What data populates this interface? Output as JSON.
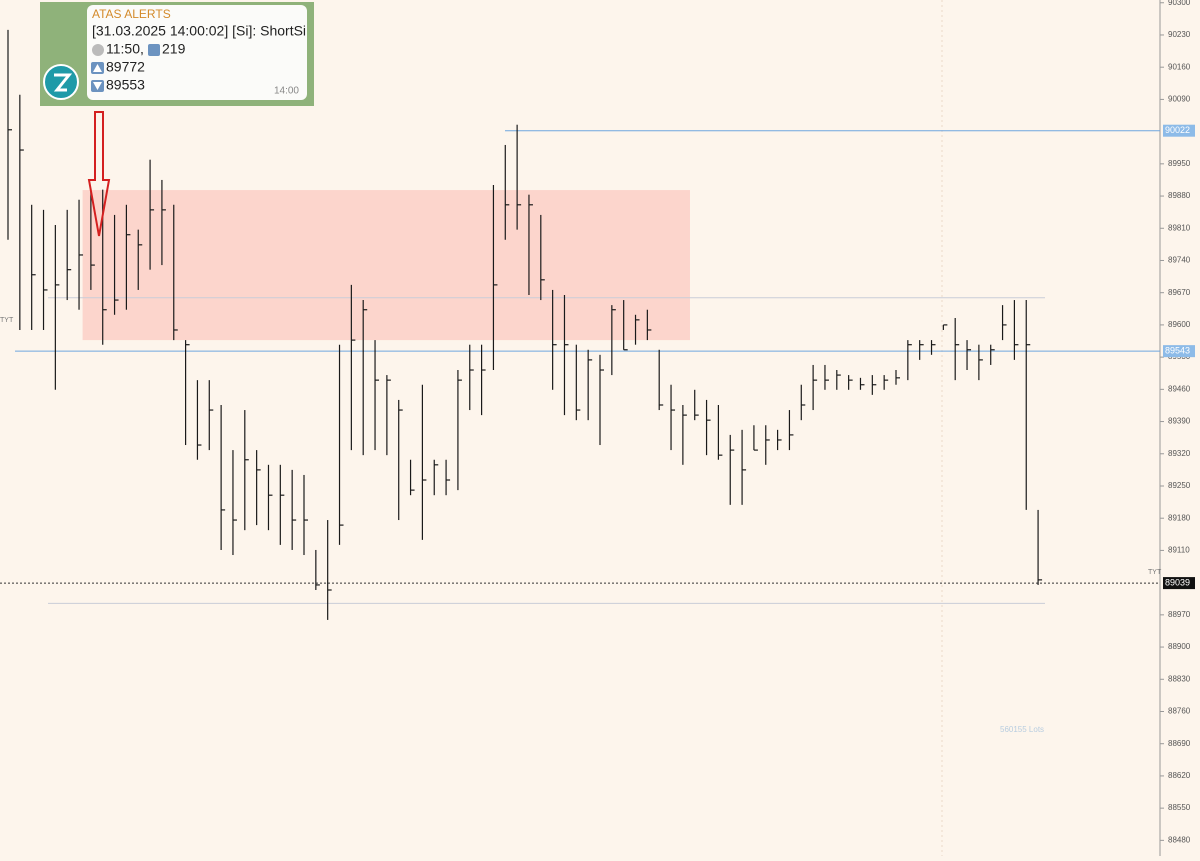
{
  "chart_data": {
    "type": "ohlc",
    "color": "#1a1a1a",
    "high": [
      90241,
      90100,
      89861,
      89850,
      89817,
      89850,
      89872,
      89894,
      89894,
      89839,
      89861,
      89807,
      89959,
      89915,
      89861,
      89567,
      89480,
      89480,
      89426,
      89328,
      89415,
      89328,
      89296,
      89296,
      89285,
      89274,
      89111,
      89176,
      89557,
      89687,
      89654,
      89567,
      89491,
      89437,
      89307,
      89470,
      89307,
      89307,
      89502,
      89557,
      89557,
      89904,
      89991,
      90035,
      89883,
      89839,
      89676,
      89665,
      89557,
      89546,
      89535,
      89643,
      89654,
      89622,
      89633,
      89546,
      89470,
      89426,
      89459,
      89437,
      89426,
      89361,
      89372,
      89382,
      89382,
      89372,
      89415,
      89470,
      89513,
      89513,
      89502,
      89491,
      89485,
      89491,
      89491,
      89502,
      89567,
      89567,
      89567,
      89600,
      89615,
      89567,
      89557,
      89557,
      89643,
      89654,
      89654,
      89198
    ],
    "low": [
      89785,
      89589,
      89589,
      89589,
      89459,
      89654,
      89633,
      89676,
      89557,
      89622,
      89633,
      89676,
      89720,
      89730,
      89567,
      89339,
      89307,
      89328,
      89111,
      89100,
      89154,
      89165,
      89154,
      89122,
      89111,
      89100,
      89024,
      88959,
      89122,
      89328,
      89317,
      89328,
      89317,
      89176,
      89230,
      89133,
      89230,
      89230,
      89241,
      89415,
      89404,
      89502,
      89785,
      89807,
      89665,
      89654,
      89459,
      89404,
      89393,
      89393,
      89339,
      89491,
      89546,
      89557,
      89567,
      89415,
      89328,
      89296,
      89393,
      89317,
      89307,
      89209,
      89209,
      89328,
      89296,
      89328,
      89328,
      89393,
      89415,
      89459,
      89459,
      89459,
      89459,
      89448,
      89459,
      89470,
      89480,
      89524,
      89535,
      89589,
      89480,
      89502,
      89480,
      89513,
      89567,
      89524,
      89198,
      89035
    ],
    "close": [
      90024,
      89980,
      89709,
      89676,
      89687,
      89720,
      89752,
      89730,
      89633,
      89654,
      89796,
      89774,
      89850,
      89850,
      89589,
      89557,
      89339,
      89415,
      89198,
      89176,
      89307,
      89285,
      89230,
      89230,
      89176,
      89176,
      89035,
      89024,
      89165,
      89567,
      89633,
      89480,
      89480,
      89415,
      89241,
      89263,
      89296,
      89263,
      89480,
      89502,
      89502,
      89687,
      89861,
      89861,
      89861,
      89698,
      89557,
      89557,
      89415,
      89524,
      89502,
      89633,
      89546,
      89611,
      89589,
      89426,
      89415,
      89404,
      89404,
      89393,
      89317,
      89328,
      89285,
      89328,
      89350,
      89350,
      89361,
      89426,
      89480,
      89480,
      89491,
      89480,
      89470,
      89470,
      89480,
      89485,
      89557,
      89557,
      89557,
      89600,
      89557,
      89546,
      89524,
      89546,
      89600,
      89557,
      89557,
      89046
    ],
    "ylim": [
      88446,
      90306
    ],
    "yticks": [
      90300,
      90230,
      90160,
      90090,
      89950,
      89880,
      89810,
      89740,
      89670,
      89600,
      89530,
      89460,
      89390,
      89320,
      89250,
      89180,
      89110,
      88970,
      88900,
      88830,
      88760,
      88690,
      88620,
      88550,
      88480
    ],
    "levels": [
      {
        "value": 90022,
        "color": "#6fa6df",
        "labeled": true,
        "label_bg": "#8dbbe8"
      },
      {
        "value": 89543,
        "color": "#6fa6df",
        "labeled": true,
        "label_bg": "#8dbbe8"
      },
      {
        "value": 89039,
        "color": "#333333",
        "labeled": true,
        "label_bg": "#111111",
        "dashed": true
      },
      {
        "value": 89659,
        "color": "#c9cdd8",
        "labeled": false
      },
      {
        "value": 88995,
        "color": "#c9cdd8",
        "labeled": false
      }
    ],
    "zone": {
      "ylim": [
        89567,
        89893
      ],
      "xlim": [
        6.3,
        57.6
      ],
      "color": "#fbc9c2"
    },
    "annotations": [
      "TYT",
      "TYT",
      "560155 Lots"
    ]
  },
  "alert": {
    "title": "ATAS ALERTS",
    "message": "[31.03.2025 14:00:02] [Si]: ShortSi",
    "time": "11:50,",
    "count": "219",
    "high": "89772",
    "low": "89553",
    "stamp": "14:00"
  }
}
